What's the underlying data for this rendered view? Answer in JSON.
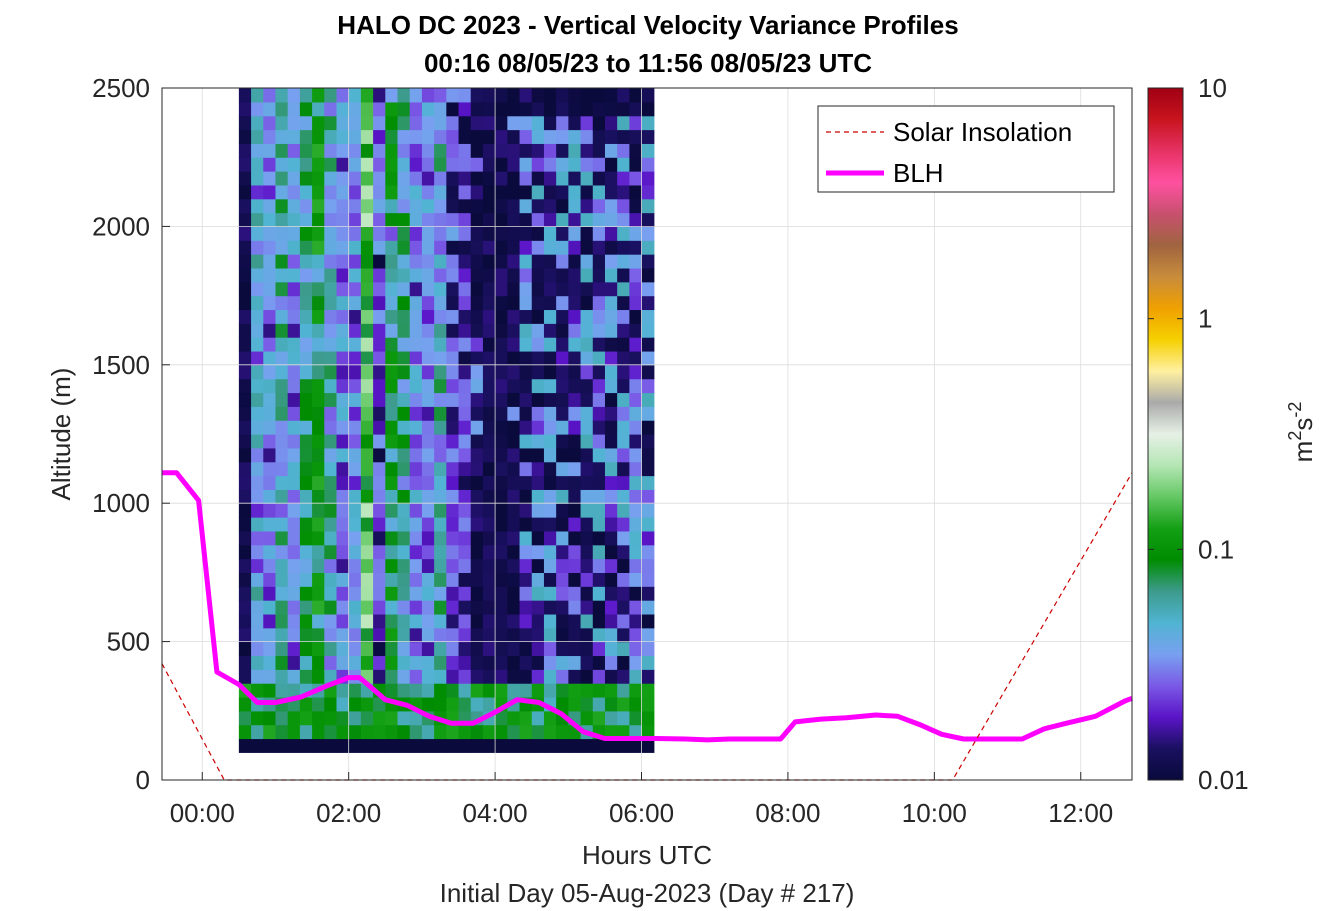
{
  "chart_data": {
    "type": "heatmap",
    "title": "HALO DC 2023 - Vertical Velocity Variance Profiles",
    "subtitle": "00:16 08/05/23 to 11:56 08/05/23  UTC",
    "xlabel": "Hours UTC",
    "xlabel2": "Initial Day 05-Aug-2023 (Day # 217)",
    "ylabel": "Altitude (m)",
    "xlim": [
      -0.55,
      12.7
    ],
    "ylim": [
      0,
      2500
    ],
    "x_ticks": [
      0,
      2,
      4,
      6,
      8,
      10,
      12
    ],
    "x_tick_labels": [
      "00:00",
      "02:00",
      "04:00",
      "06:00",
      "08:00",
      "10:00",
      "12:00"
    ],
    "y_ticks": [
      0,
      500,
      1000,
      1500,
      2000,
      2500
    ],
    "y_tick_labels": [
      "0",
      "500",
      "1000",
      "1500",
      "2000",
      "2500"
    ],
    "grid": true,
    "colorbar": {
      "label": "m²s⁻²",
      "label_base": "m",
      "label_exp1": "2",
      "label_mid": "s",
      "label_exp2": "-2",
      "scale": "log",
      "range": [
        0.01,
        10
      ],
      "ticks": [
        0.01,
        0.1,
        1,
        10
      ],
      "tick_labels": [
        "0.01",
        "0.1",
        "1",
        "10"
      ],
      "colors": [
        "#0a0a3c",
        "#1a1060",
        "#5a14c8",
        "#7a5ae6",
        "#78a0f0",
        "#50b4d2",
        "#3c9b8c",
        "#008c00",
        "#14a014",
        "#64c864",
        "#b4e6b4",
        "#e6f0e6",
        "#aaaaaa",
        "#fff0a0",
        "#f5d000",
        "#f0a000",
        "#c88c3c",
        "#a06440",
        "#c8506e",
        "#ff50a0",
        "#e63264",
        "#c8141e",
        "#a00014"
      ]
    },
    "legend": {
      "placement": "top-right",
      "entries": [
        {
          "name": "Solar Insolation",
          "color": "#cc0000",
          "style": "dashed"
        },
        {
          "name": "BLH",
          "color": "#ff00ff",
          "style": "solid"
        }
      ]
    },
    "heatmap": {
      "x_start": 0.5,
      "x_step": 0.1667,
      "columns": 34,
      "y_start": 100,
      "y_step": 50,
      "rows": 48,
      "value_unit": "m^2 s^-2",
      "description_of_values": "Per-column variance profiles; active convective columns 0.02-0.2 m2/s2 below ~2500 m before 05:30, near-background 0.01 afterwards with surface values 0.05-0.15"
    },
    "series": [
      {
        "name": "BLH",
        "x": [
          -0.55,
          -0.35,
          -0.05,
          0.2,
          0.5,
          0.75,
          1.0,
          1.35,
          1.7,
          2.0,
          2.15,
          2.5,
          2.8,
          3.1,
          3.4,
          3.7,
          4.0,
          4.3,
          4.6,
          4.9,
          5.2,
          5.5,
          5.85,
          6.2,
          6.6,
          6.9,
          7.2,
          7.6,
          7.9,
          8.1,
          8.45,
          8.8,
          9.2,
          9.5,
          9.8,
          10.1,
          10.4,
          10.8,
          11.2,
          11.5,
          11.8,
          12.2,
          12.6,
          12.7
        ],
        "y": [
          1110,
          1110,
          1010,
          390,
          345,
          280,
          280,
          300,
          340,
          370,
          370,
          290,
          270,
          230,
          205,
          205,
          245,
          290,
          280,
          240,
          175,
          150,
          150,
          150,
          148,
          145,
          148,
          148,
          148,
          210,
          220,
          225,
          235,
          230,
          200,
          165,
          148,
          148,
          148,
          185,
          205,
          230,
          285,
          295
        ]
      },
      {
        "name": "Solar Insolation",
        "x": [
          -0.55,
          0.3,
          10.25,
          12.7
        ],
        "y": [
          420,
          0,
          0,
          1110
        ]
      }
    ]
  }
}
